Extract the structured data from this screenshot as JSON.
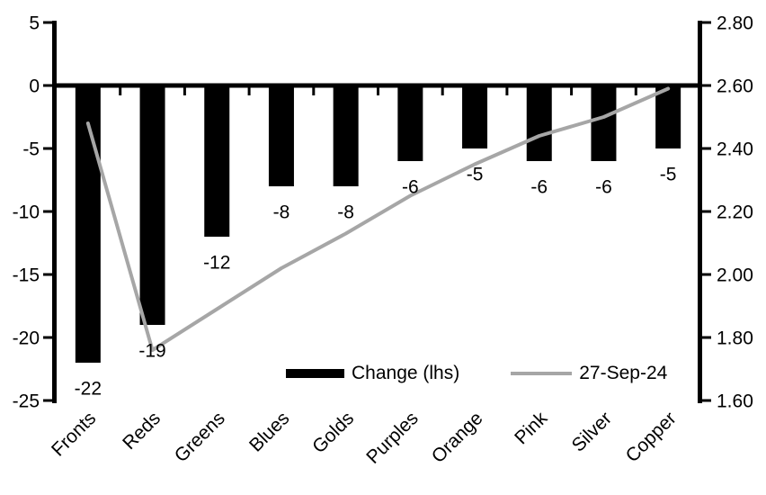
{
  "chart_data": {
    "type": "bar",
    "subtype": "dual-axis-bar-line-combo",
    "title": "",
    "categories": [
      "Fronts",
      "Reds",
      "Greens",
      "Blues",
      "Golds",
      "Purples",
      "Orange",
      "Pink",
      "Silver",
      "Copper"
    ],
    "series": [
      {
        "name": "Change (lhs)",
        "render": "bar",
        "axis": "left",
        "color": "#000000",
        "values": [
          -22,
          -19,
          -12,
          -8,
          -8,
          -6,
          -5,
          -6,
          -6,
          -5
        ]
      },
      {
        "name": "27-Sep-24",
        "render": "line",
        "axis": "right",
        "color": "#a6a6a6",
        "values": [
          2.48,
          1.76,
          1.89,
          2.02,
          2.13,
          2.25,
          2.35,
          2.44,
          2.5,
          2.59
        ]
      }
    ],
    "bar_labels": [
      "-22",
      "-19",
      "-12",
      "-8",
      "-8",
      "-6",
      "-5",
      "-6",
      "-6",
      "-5"
    ],
    "left_axis": {
      "min": -25,
      "max": 5,
      "step": 5,
      "ticks": [
        "5",
        "0",
        "-5",
        "-10",
        "-15",
        "-20",
        "-25"
      ]
    },
    "right_axis": {
      "min": 1.6,
      "max": 2.8,
      "step": 0.2,
      "ticks": [
        "2.80",
        "2.60",
        "2.40",
        "2.20",
        "2.00",
        "1.80",
        "1.60"
      ]
    },
    "grid": false,
    "axis_color": "#000000",
    "background": "#ffffff",
    "legend": {
      "position": "bottom-inside",
      "items": [
        {
          "label": "Change (lhs)",
          "swatch": "bar",
          "color": "#000000"
        },
        {
          "label": "27-Sep-24",
          "swatch": "line",
          "color": "#a6a6a6"
        }
      ]
    }
  }
}
